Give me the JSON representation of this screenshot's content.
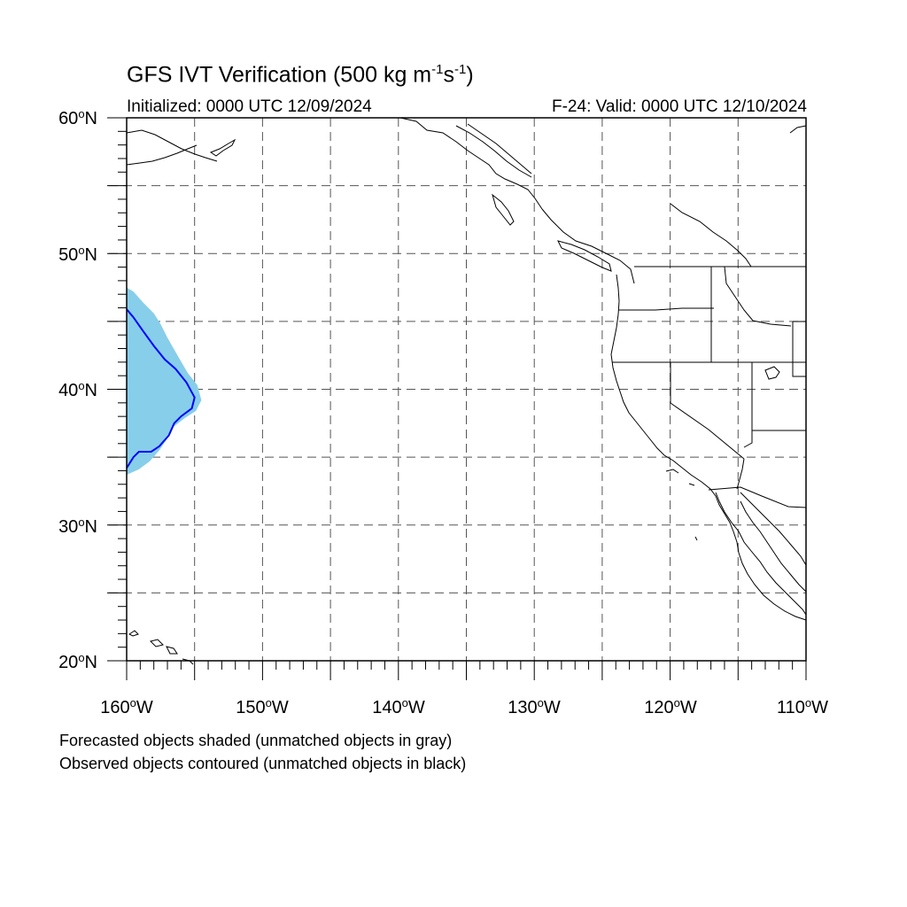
{
  "header": {
    "title_main": "GFS IVT Verification (500 kg m",
    "title_exp1": "-1",
    "title_mid": "s",
    "title_exp2": "-1",
    "title_end": ")",
    "initialized": "Initialized: 0000 UTC 12/09/2024",
    "valid": "F-24: Valid: 0000 UTC 12/10/2024"
  },
  "axes": {
    "lat_labels": [
      {
        "value": "60",
        "suffix": "N"
      },
      {
        "value": "50",
        "suffix": "N"
      },
      {
        "value": "40",
        "suffix": "N"
      },
      {
        "value": "30",
        "suffix": "N"
      },
      {
        "value": "20",
        "suffix": "N"
      }
    ],
    "lon_labels": [
      {
        "value": "160",
        "suffix": "W"
      },
      {
        "value": "150",
        "suffix": "W"
      },
      {
        "value": "140",
        "suffix": "W"
      },
      {
        "value": "130",
        "suffix": "W"
      },
      {
        "value": "120",
        "suffix": "W"
      },
      {
        "value": "110",
        "suffix": "W"
      }
    ],
    "lat_range": [
      20,
      60
    ],
    "lon_range": [
      -160,
      -110
    ],
    "grid": "dashed every 5 degrees"
  },
  "legend": {
    "line1": "Forecasted objects shaded (unmatched objects in gray)",
    "line2": "Observed objects contoured (unmatched objects in black)"
  },
  "colors": {
    "forecast_fill": "#87ceeb",
    "observed_contour": "#0000ff",
    "coastline": "#000000",
    "grid": "#555555"
  },
  "objects": {
    "forecast_object": [
      [
        -160,
        47.5
      ],
      [
        -159.5,
        47.2
      ],
      [
        -158.8,
        46.4
      ],
      [
        -158,
        45.6
      ],
      [
        -157.5,
        44.8
      ],
      [
        -157,
        43.8
      ],
      [
        -156.2,
        42.4
      ],
      [
        -155.5,
        41.2
      ],
      [
        -154.8,
        40.3
      ],
      [
        -154.5,
        39.2
      ],
      [
        -154.9,
        38.4
      ],
      [
        -155.7,
        37.9
      ],
      [
        -156.6,
        37.2
      ],
      [
        -157,
        36.4
      ],
      [
        -157.6,
        35.5
      ],
      [
        -158.3,
        34.7
      ],
      [
        -159.1,
        34.1
      ],
      [
        -160,
        33.7
      ]
    ],
    "observed_object": [
      [
        -160,
        45.9
      ],
      [
        -159.5,
        45.3
      ],
      [
        -158.8,
        44.3
      ],
      [
        -158,
        43.2
      ],
      [
        -157.2,
        42.2
      ],
      [
        -156.4,
        41.5
      ],
      [
        -155.6,
        40.5
      ],
      [
        -155,
        39.4
      ],
      [
        -155.2,
        38.6
      ],
      [
        -156,
        38
      ],
      [
        -156.5,
        37.5
      ],
      [
        -156.9,
        36.6
      ],
      [
        -157.6,
        35.8
      ],
      [
        -158.2,
        35.4
      ],
      [
        -159.1,
        35.4
      ],
      [
        -159.5,
        35
      ],
      [
        -160,
        34.2
      ]
    ]
  }
}
